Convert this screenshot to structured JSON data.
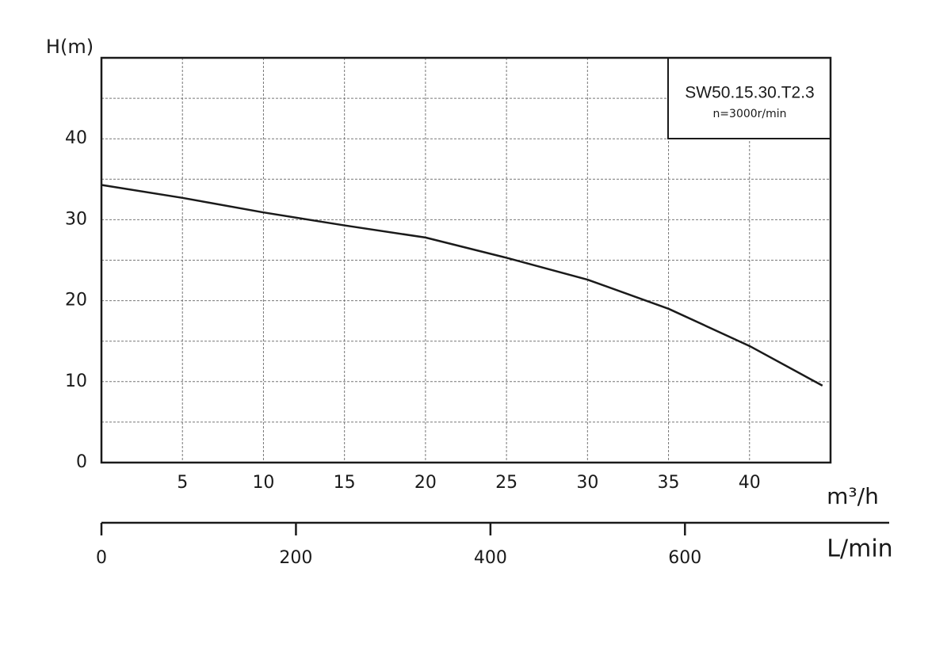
{
  "chart_data": {
    "type": "line",
    "title": "SW50.15.30.T2.3",
    "subtitle": "n=3000r/min",
    "y_label": "H(m)",
    "x_label": "m³/h",
    "x2_label": "L/min",
    "x": [
      0,
      5,
      10,
      15,
      20,
      25,
      30,
      35,
      40,
      44.5
    ],
    "values": [
      34.3,
      32.7,
      30.9,
      29.3,
      27.8,
      25.3,
      22.6,
      19.0,
      14.4,
      9.5
    ],
    "color": "#1a1a1a",
    "xlim": [
      0,
      45
    ],
    "xticks": [
      5,
      10,
      15,
      20,
      25,
      30,
      35,
      40
    ],
    "ylim": [
      0,
      50
    ],
    "yticks": [
      0,
      10,
      20,
      30,
      40
    ],
    "yminor": [
      5,
      15,
      25,
      35,
      45
    ],
    "x2lim": [
      0,
      810
    ],
    "x2ticks": [
      0,
      200,
      400,
      600
    ],
    "grid": true
  }
}
